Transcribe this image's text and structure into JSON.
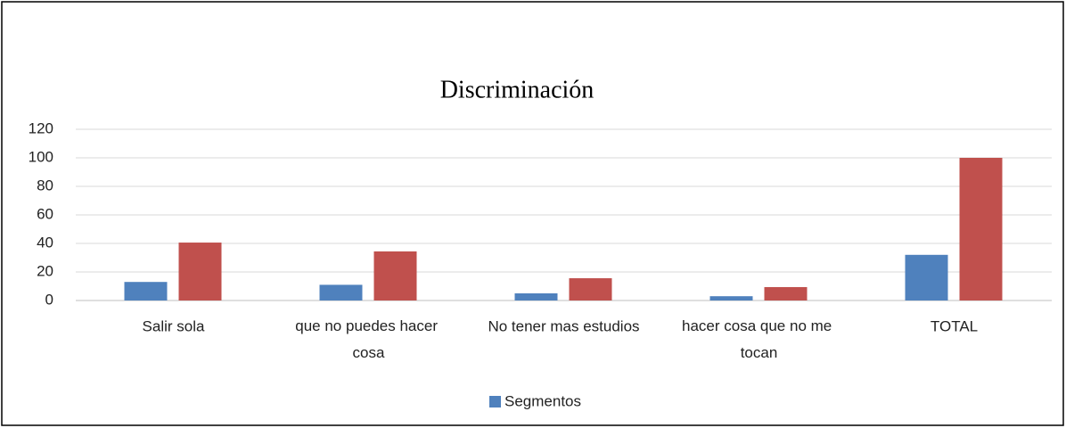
{
  "chart_data": {
    "type": "bar",
    "title": "Discriminación",
    "categories": [
      "Salir sola",
      "que no puedes hacer cosa",
      "No tener mas estudios",
      "hacer cosa que no me tocan",
      "TOTAL"
    ],
    "series": [
      {
        "name": "Segmentos",
        "color": "#4f81bd",
        "values": [
          13,
          11,
          5,
          3,
          32
        ]
      },
      {
        "color": "#c0504d",
        "values": [
          40.6,
          34.4,
          15.6,
          9.4,
          100
        ]
      }
    ],
    "ylim": [
      0,
      120
    ],
    "yticks": [
      0,
      20,
      40,
      60,
      80,
      100,
      120
    ],
    "grid": true,
    "legend": "bottom"
  }
}
